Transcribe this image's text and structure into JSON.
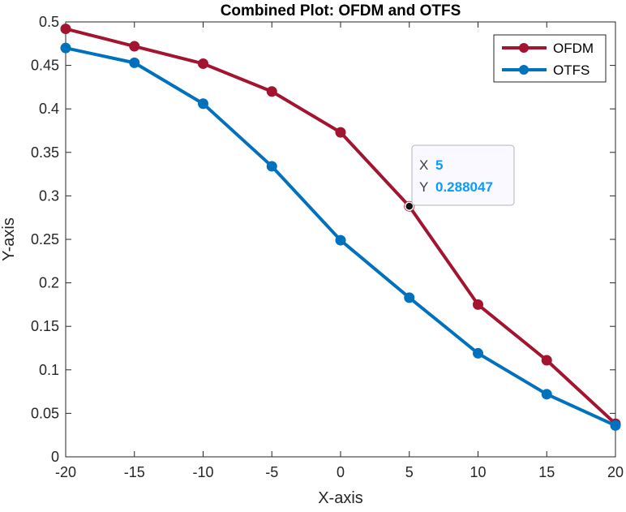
{
  "chart_data": {
    "type": "line",
    "title": "Combined Plot: OFDM and OTFS",
    "xlabel": "X-axis",
    "ylabel": "Y-axis",
    "xlim": [
      -20,
      20
    ],
    "ylim": [
      0,
      0.5
    ],
    "x": [
      -20,
      -15,
      -10,
      -5,
      0,
      5,
      10,
      15,
      20
    ],
    "x_ticks": [
      -20,
      -15,
      -10,
      -5,
      0,
      5,
      10,
      15,
      20
    ],
    "x_tick_labels": [
      "-20",
      "-15",
      "-10",
      "-5",
      "0",
      "5",
      "10",
      "15",
      "20"
    ],
    "y_ticks": [
      0,
      0.05,
      0.1,
      0.15,
      0.2,
      0.25,
      0.3,
      0.35,
      0.4,
      0.45,
      0.5
    ],
    "y_tick_labels": [
      "0",
      "0.05",
      "0.1",
      "0.15",
      "0.2",
      "0.25",
      "0.3",
      "0.35",
      "0.4",
      "0.45",
      "0.5"
    ],
    "grid": false,
    "legend_position": "top-right",
    "series": [
      {
        "name": "OFDM",
        "color": "#A2142F",
        "values": [
          0.492,
          0.472,
          0.452,
          0.42,
          0.373,
          0.288047,
          0.175,
          0.111,
          0.038
        ]
      },
      {
        "name": "OTFS",
        "color": "#0072BD",
        "values": [
          0.47,
          0.453,
          0.406,
          0.334,
          0.249,
          0.183,
          0.119,
          0.072,
          0.036
        ]
      }
    ],
    "datatip": {
      "series": "OFDM",
      "x_key": "X",
      "x_value": "5",
      "y_key": "Y",
      "y_value": "0.288047",
      "x": 5,
      "y": 0.288047,
      "value_color": "#0A9BFF"
    }
  }
}
